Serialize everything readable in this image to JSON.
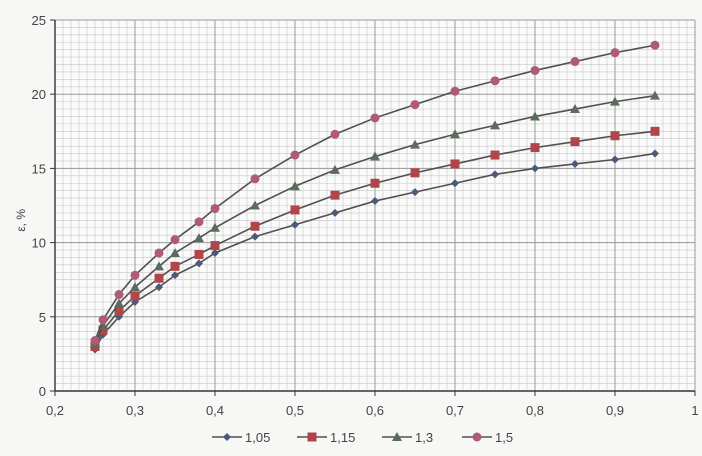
{
  "chart_data": {
    "type": "line",
    "title": "",
    "xlabel": "",
    "ylabel": "ε, %",
    "xlim": [
      0.2,
      1.0
    ],
    "ylim": [
      0,
      25
    ],
    "x_ticks": [
      "0,2",
      "0,3",
      "0,4",
      "0,5",
      "0,6",
      "0,7",
      "0,8",
      "0,9",
      "1"
    ],
    "y_ticks": [
      "0",
      "5",
      "10",
      "15",
      "20",
      "25"
    ],
    "grid": true,
    "legend_position": "bottom",
    "series": [
      {
        "name": "1,05",
        "marker": "diamond",
        "color": "#4a5a78",
        "x": [
          0.25,
          0.26,
          0.28,
          0.3,
          0.33,
          0.35,
          0.38,
          0.4,
          0.45,
          0.5,
          0.55,
          0.6,
          0.65,
          0.7,
          0.75,
          0.8,
          0.85,
          0.9,
          0.95
        ],
        "y": [
          2.8,
          3.8,
          5.0,
          6.0,
          7.0,
          7.8,
          8.6,
          9.3,
          10.4,
          11.2,
          12.0,
          12.8,
          13.4,
          14.0,
          14.6,
          15.0,
          15.3,
          15.6,
          16.0
        ]
      },
      {
        "name": "1,15",
        "marker": "square",
        "color": "#b0454a",
        "x": [
          0.25,
          0.26,
          0.28,
          0.3,
          0.33,
          0.35,
          0.38,
          0.4,
          0.45,
          0.5,
          0.55,
          0.6,
          0.65,
          0.7,
          0.75,
          0.8,
          0.85,
          0.9,
          0.95
        ],
        "y": [
          3.0,
          4.1,
          5.4,
          6.4,
          7.6,
          8.4,
          9.2,
          9.8,
          11.1,
          12.2,
          13.2,
          14.0,
          14.7,
          15.3,
          15.9,
          16.4,
          16.8,
          17.2,
          17.5
        ]
      },
      {
        "name": "1,3",
        "marker": "triangle",
        "color": "#5a6c5a",
        "x": [
          0.25,
          0.26,
          0.28,
          0.3,
          0.33,
          0.35,
          0.38,
          0.4,
          0.45,
          0.5,
          0.55,
          0.6,
          0.65,
          0.7,
          0.75,
          0.8,
          0.85,
          0.9,
          0.95
        ],
        "y": [
          3.2,
          4.4,
          5.9,
          7.0,
          8.4,
          9.3,
          10.3,
          11.0,
          12.5,
          13.8,
          14.9,
          15.8,
          16.6,
          17.3,
          17.9,
          18.5,
          19.0,
          19.5,
          19.9
        ]
      },
      {
        "name": "1,5",
        "marker": "circle",
        "color": "#b05a78",
        "x": [
          0.25,
          0.26,
          0.28,
          0.3,
          0.33,
          0.35,
          0.38,
          0.4,
          0.45,
          0.5,
          0.55,
          0.6,
          0.65,
          0.7,
          0.75,
          0.8,
          0.85,
          0.9,
          0.95
        ],
        "y": [
          3.4,
          4.8,
          6.5,
          7.8,
          9.3,
          10.2,
          11.4,
          12.3,
          14.3,
          15.9,
          17.3,
          18.4,
          19.3,
          20.2,
          20.9,
          21.6,
          22.2,
          22.8,
          23.3
        ]
      }
    ]
  }
}
